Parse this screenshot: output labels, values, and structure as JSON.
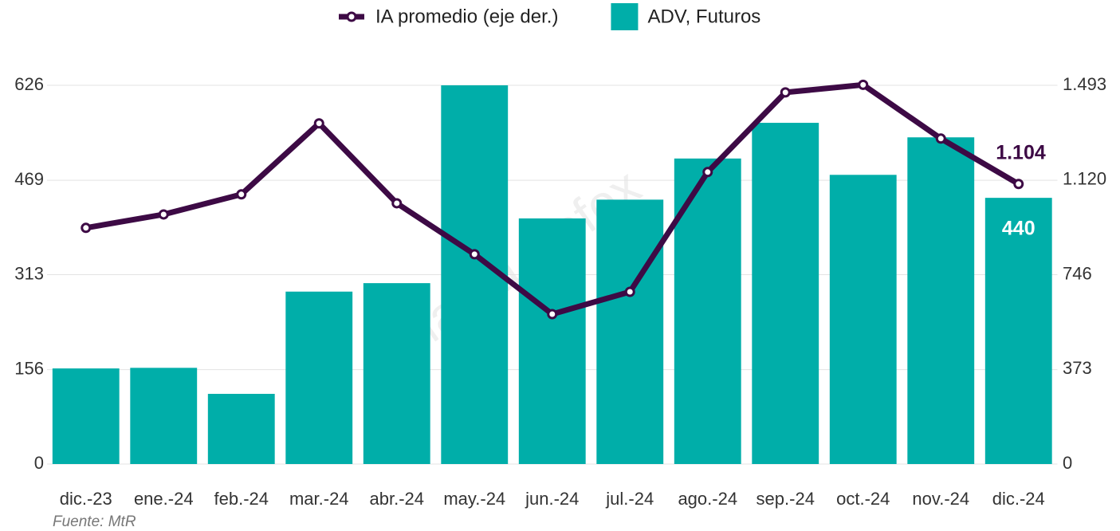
{
  "chart_data": {
    "type": "bar_line",
    "categories": [
      "dic.-23",
      "ene.-24",
      "feb.-24",
      "mar.-24",
      "abr.-24",
      "may.-24",
      "jun.-24",
      "jul.-24",
      "ago.-24",
      "sep.-24",
      "oct.-24",
      "nov.-24",
      "dic.-24"
    ],
    "series": [
      {
        "name": "ADV, Futuros",
        "type": "bar",
        "color": "#00aea9",
        "values": [
          158,
          159,
          116,
          285,
          299,
          626,
          406,
          437,
          505,
          564,
          478,
          540,
          440
        ],
        "value_labels": [
          null,
          null,
          null,
          null,
          null,
          null,
          null,
          null,
          null,
          null,
          null,
          null,
          "440"
        ]
      },
      {
        "name": "IA promedio (eje der.)",
        "type": "line",
        "axis": "y2",
        "color": "#3d0a45",
        "values": [
          931,
          984,
          1063,
          1343,
          1028,
          827,
          591,
          679,
          1151,
          1465,
          1495,
          1283,
          1104
        ],
        "value_labels": [
          null,
          null,
          null,
          null,
          null,
          null,
          null,
          null,
          null,
          null,
          null,
          null,
          "1.104"
        ]
      }
    ],
    "ylim": [
      0,
      626
    ],
    "yticks": [
      0,
      156,
      313,
      469,
      626
    ],
    "y2lim": [
      0,
      1493
    ],
    "y2ticks": [
      0,
      373,
      746,
      {
        "value": 1120,
        "label": "1.120"
      },
      {
        "value": 1493,
        "label": "1.493"
      }
    ],
    "grid": true,
    "legend": "top",
    "watermark": "Matba Rofex",
    "source": "Fuente: MtR"
  }
}
